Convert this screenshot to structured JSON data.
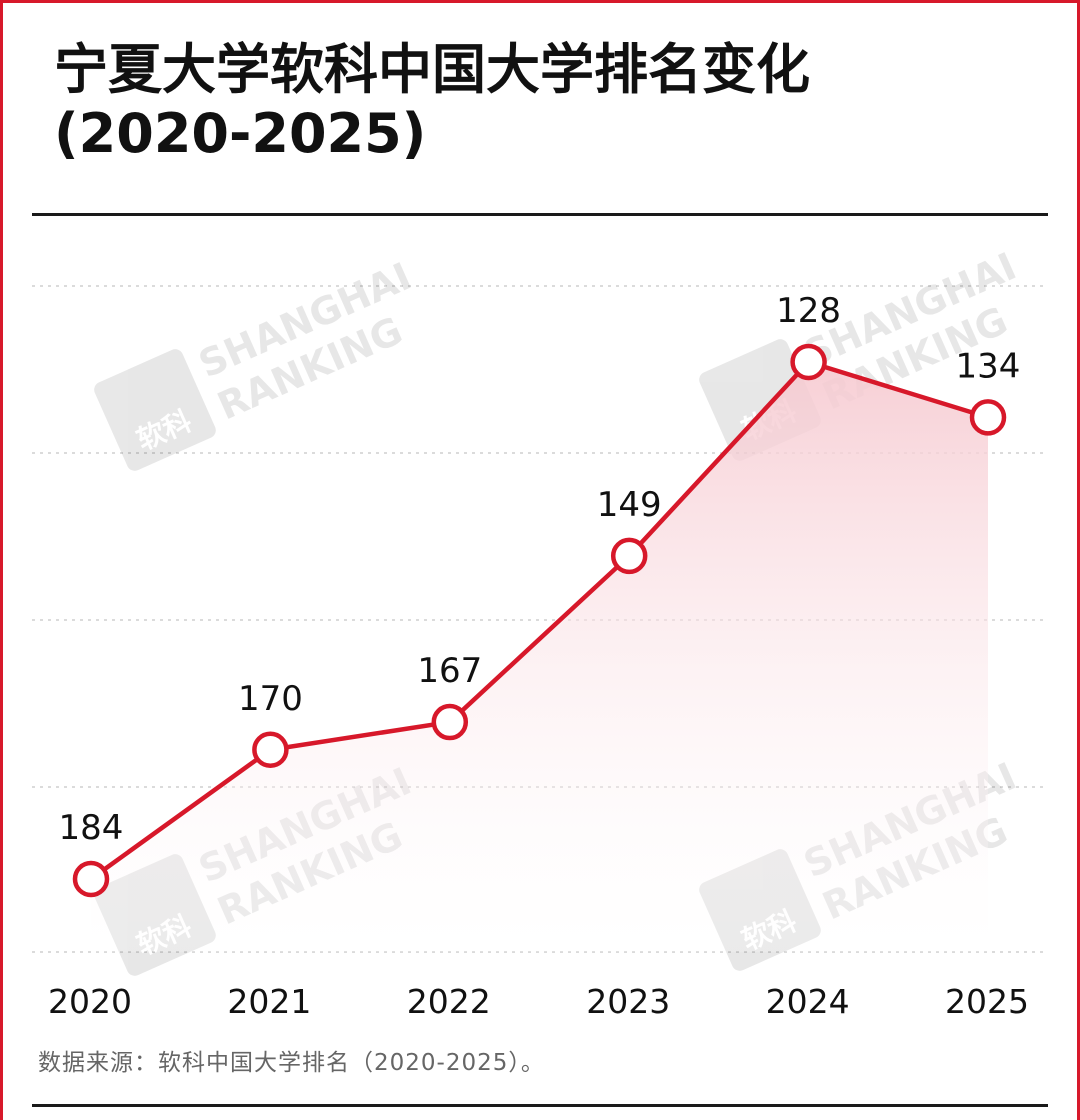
{
  "title": {
    "line1": "宁夏大学软科中国大学排名变化",
    "line2": "(2020-2025)"
  },
  "source_note": "数据来源：软科中国大学排名（2020-2025）。",
  "watermark": {
    "line1": "SHANGHAI",
    "line2": "RANKING",
    "logo_text": "软科"
  },
  "colors": {
    "accent": "#d7182a",
    "text": "#111111",
    "muted": "#666666",
    "fill_top": "#f6c9d0"
  },
  "chart_data": {
    "type": "line",
    "title": "宁夏大学软科中国大学排名变化 (2020-2025)",
    "xlabel": "",
    "ylabel": "",
    "y_inverted": true,
    "grid": true,
    "categories": [
      "2020",
      "2021",
      "2022",
      "2023",
      "2024",
      "2025"
    ],
    "series": [
      {
        "name": "排名",
        "values": [
          184,
          170,
          167,
          149,
          128,
          134
        ]
      }
    ],
    "data_labels": [
      "184",
      "170",
      "167",
      "149",
      "128",
      "134"
    ]
  }
}
